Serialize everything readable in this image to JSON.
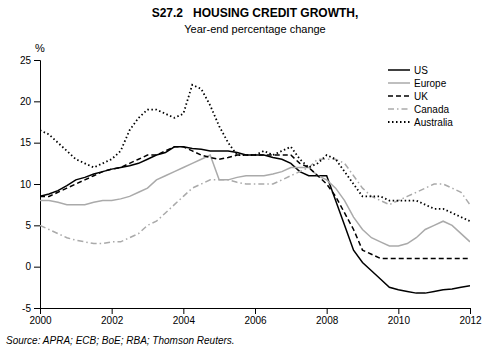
{
  "chart_data": {
    "type": "line",
    "title": "S27.2   HOUSING CREDIT GROWTH,",
    "subtitle": "Year-end percentage change",
    "ylabel": "%",
    "source": "Source: APRA; ECB; BoE; RBA; Thomson Reuters.",
    "xlim": [
      2000,
      2012
    ],
    "ylim": [
      -5,
      25
    ],
    "xticks": [
      2000,
      2002,
      2004,
      2006,
      2008,
      2010,
      2012
    ],
    "yticks": [
      -5,
      0,
      5,
      10,
      15,
      20,
      25
    ],
    "grid": false,
    "legend": "upper right",
    "x": [
      2000.0,
      2000.25,
      2000.5,
      2000.75,
      2001.0,
      2001.25,
      2001.5,
      2001.75,
      2002.0,
      2002.25,
      2002.5,
      2002.75,
      2003.0,
      2003.25,
      2003.5,
      2003.75,
      2004.0,
      2004.25,
      2004.5,
      2004.75,
      2005.0,
      2005.25,
      2005.5,
      2005.75,
      2006.0,
      2006.25,
      2006.5,
      2006.75,
      2007.0,
      2007.25,
      2007.5,
      2007.75,
      2008.0,
      2008.25,
      2008.5,
      2008.75,
      2009.0,
      2009.25,
      2009.5,
      2009.75,
      2010.0,
      2010.25,
      2010.5,
      2010.75,
      2011.0,
      2011.25,
      2011.5,
      2011.75,
      2012.0
    ],
    "series": [
      {
        "name": "US",
        "color": "#000000",
        "line_style": "solid",
        "values": [
          8.5,
          8.8,
          9.2,
          9.8,
          10.5,
          10.8,
          11.2,
          11.5,
          11.8,
          12.0,
          12.2,
          12.5,
          13.0,
          13.5,
          13.8,
          14.5,
          14.5,
          14.3,
          14.2,
          14.0,
          14.0,
          14.0,
          13.8,
          13.5,
          13.5,
          13.5,
          13.2,
          13.0,
          12.5,
          11.5,
          11.0,
          11.0,
          11.0,
          8.0,
          5.0,
          2.0,
          0.5,
          -0.5,
          -1.5,
          -2.5,
          -2.8,
          -3.0,
          -3.2,
          -3.2,
          -3.0,
          -2.8,
          -2.7,
          -2.5,
          -2.3
        ]
      },
      {
        "name": "Europe",
        "color": "#aaaaaa",
        "line_style": "solid",
        "values": [
          8.0,
          8.0,
          7.8,
          7.5,
          7.5,
          7.5,
          7.8,
          8.0,
          8.0,
          8.2,
          8.5,
          9.0,
          9.5,
          10.5,
          11.0,
          11.5,
          12.0,
          12.5,
          13.0,
          13.5,
          10.5,
          10.5,
          10.8,
          11.0,
          11.0,
          11.0,
          11.2,
          11.5,
          12.0,
          12.0,
          12.0,
          11.0,
          10.5,
          9.5,
          8.0,
          6.0,
          4.5,
          3.5,
          3.0,
          2.5,
          2.5,
          2.8,
          3.5,
          4.5,
          5.0,
          5.5,
          5.0,
          4.0,
          3.0
        ]
      },
      {
        "name": "UK",
        "color": "#000000",
        "line_style": "dashed",
        "values": [
          8.5,
          8.5,
          9.0,
          9.5,
          10.0,
          10.5,
          11.0,
          11.5,
          11.8,
          12.0,
          12.5,
          13.0,
          13.5,
          13.5,
          14.0,
          14.5,
          14.5,
          14.0,
          13.5,
          13.2,
          13.0,
          13.2,
          13.5,
          13.5,
          13.5,
          13.5,
          13.5,
          13.5,
          13.5,
          12.5,
          12.0,
          11.0,
          10.0,
          8.5,
          6.5,
          4.5,
          2.0,
          1.5,
          1.0,
          1.0,
          1.0,
          1.0,
          1.0,
          1.0,
          1.0,
          1.0,
          1.0,
          1.0,
          1.0
        ]
      },
      {
        "name": "Canada",
        "color": "#aaaaaa",
        "line_style": "dashdot",
        "values": [
          5.0,
          4.5,
          4.0,
          3.5,
          3.2,
          3.0,
          2.8,
          2.8,
          3.0,
          3.0,
          3.5,
          4.0,
          5.0,
          5.5,
          6.5,
          7.5,
          8.5,
          9.5,
          10.0,
          10.5,
          10.5,
          10.5,
          10.2,
          10.0,
          10.0,
          10.0,
          10.0,
          10.5,
          11.0,
          11.5,
          12.0,
          13.0,
          13.0,
          13.0,
          12.5,
          11.0,
          9.5,
          8.5,
          8.0,
          7.5,
          8.0,
          8.5,
          9.0,
          9.5,
          10.0,
          10.0,
          9.5,
          9.0,
          7.5
        ]
      },
      {
        "name": "Australia",
        "color": "#000000",
        "line_style": "dotted",
        "values": [
          16.5,
          16.0,
          15.0,
          14.0,
          13.0,
          12.5,
          12.0,
          12.5,
          13.0,
          14.0,
          16.5,
          18.0,
          19.0,
          19.0,
          18.5,
          18.0,
          18.5,
          22.0,
          21.5,
          19.5,
          17.0,
          15.0,
          13.5,
          13.5,
          13.5,
          14.0,
          13.5,
          14.0,
          14.5,
          13.0,
          12.0,
          12.5,
          13.5,
          13.0,
          11.5,
          10.0,
          8.5,
          8.5,
          8.5,
          8.0,
          8.0,
          8.0,
          8.0,
          7.5,
          7.0,
          7.0,
          6.5,
          6.0,
          5.5
        ]
      }
    ]
  }
}
